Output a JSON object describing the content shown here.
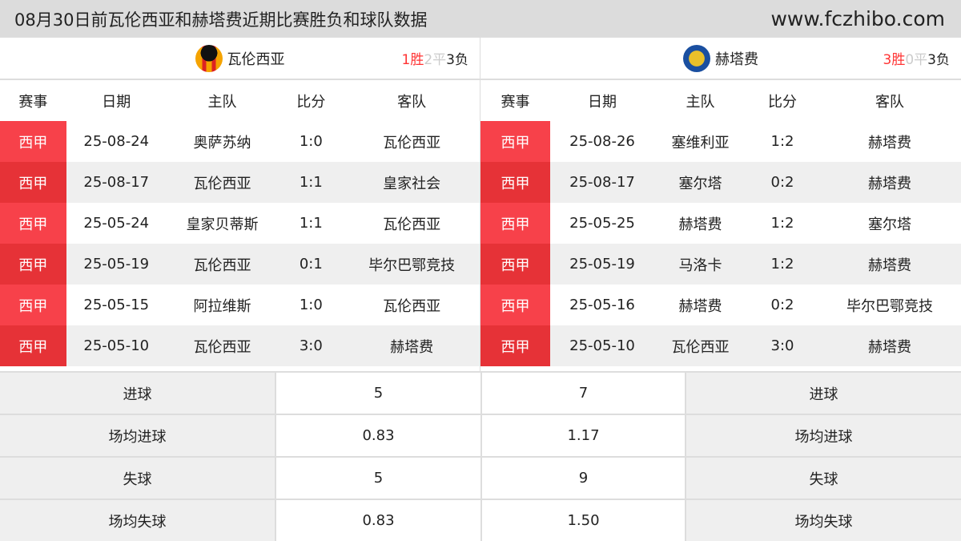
{
  "header": {
    "title": "08月30日前瓦伦西亚和赫塔费近期比赛胜负和球队数据",
    "site": "www.fczhibo.com"
  },
  "columns": [
    "赛事",
    "日期",
    "主队",
    "比分",
    "客队"
  ],
  "left": {
    "team": "瓦伦西亚",
    "logo": "valencia-crest",
    "record": {
      "w": "1胜",
      "d": "2平",
      "l": "3负"
    },
    "matches": [
      [
        "西甲",
        "25-08-24",
        "奥萨苏纳",
        "1:0",
        "瓦伦西亚"
      ],
      [
        "西甲",
        "25-08-17",
        "瓦伦西亚",
        "1:1",
        "皇家社会"
      ],
      [
        "西甲",
        "25-05-24",
        "皇家贝蒂斯",
        "1:1",
        "瓦伦西亚"
      ],
      [
        "西甲",
        "25-05-19",
        "瓦伦西亚",
        "0:1",
        "毕尔巴鄂竞技"
      ],
      [
        "西甲",
        "25-05-15",
        "阿拉维斯",
        "1:0",
        "瓦伦西亚"
      ],
      [
        "西甲",
        "25-05-10",
        "瓦伦西亚",
        "3:0",
        "赫塔费"
      ]
    ]
  },
  "right": {
    "team": "赫塔费",
    "logo": "getafe-crest",
    "record": {
      "w": "3胜",
      "d": "0平",
      "l": "3负"
    },
    "matches": [
      [
        "西甲",
        "25-08-26",
        "塞维利亚",
        "1:2",
        "赫塔费"
      ],
      [
        "西甲",
        "25-08-17",
        "塞尔塔",
        "0:2",
        "赫塔费"
      ],
      [
        "西甲",
        "25-05-25",
        "赫塔费",
        "1:2",
        "塞尔塔"
      ],
      [
        "西甲",
        "25-05-19",
        "马洛卡",
        "1:2",
        "赫塔费"
      ],
      [
        "西甲",
        "25-05-16",
        "赫塔费",
        "0:2",
        "毕尔巴鄂竞技"
      ],
      [
        "西甲",
        "25-05-10",
        "瓦伦西亚",
        "3:0",
        "赫塔费"
      ]
    ]
  },
  "stats": [
    {
      "label": "进球",
      "left": "5",
      "right": "7"
    },
    {
      "label": "场均进球",
      "left": "0.83",
      "right": "1.17"
    },
    {
      "label": "失球",
      "left": "5",
      "right": "9"
    },
    {
      "label": "场均失球",
      "left": "0.83",
      "right": "1.50"
    }
  ],
  "colors": {
    "league": "#f7414a",
    "win": "#ff3333",
    "draw": "#cccccc"
  }
}
